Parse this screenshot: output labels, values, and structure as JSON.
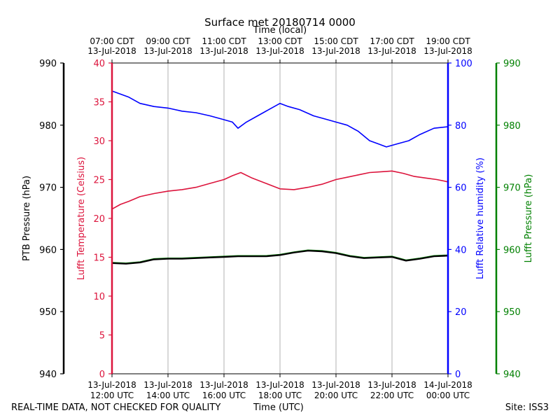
{
  "chart_data": {
    "type": "line",
    "title": "Surface met 20180714 0000",
    "top_axis_label": "Time (local)",
    "xlabel": "Time (UTC)",
    "x_range": [
      12,
      24
    ],
    "x_ticks_utc": [
      {
        "x": 12,
        "date": "13-Jul-2018",
        "time": "12:00 UTC"
      },
      {
        "x": 14,
        "date": "13-Jul-2018",
        "time": "14:00 UTC"
      },
      {
        "x": 16,
        "date": "13-Jul-2018",
        "time": "16:00 UTC"
      },
      {
        "x": 18,
        "date": "13-Jul-2018",
        "time": "18:00 UTC"
      },
      {
        "x": 20,
        "date": "13-Jul-2018",
        "time": "20:00 UTC"
      },
      {
        "x": 22,
        "date": "13-Jul-2018",
        "time": "22:00 UTC"
      },
      {
        "x": 24,
        "date": "14-Jul-2018",
        "time": "00:00 UTC"
      }
    ],
    "x_ticks_local": [
      {
        "x": 12,
        "time": "07:00 CDT",
        "date": "13-Jul-2018"
      },
      {
        "x": 14,
        "time": "09:00 CDT",
        "date": "13-Jul-2018"
      },
      {
        "x": 16,
        "time": "11:00 CDT",
        "date": "13-Jul-2018"
      },
      {
        "x": 18,
        "time": "13:00 CDT",
        "date": "13-Jul-2018"
      },
      {
        "x": 20,
        "time": "15:00 CDT",
        "date": "13-Jul-2018"
      },
      {
        "x": 22,
        "time": "17:00 CDT",
        "date": "13-Jul-2018"
      },
      {
        "x": 24,
        "time": "19:00 CDT",
        "date": "13-Jul-2018"
      }
    ],
    "axes": {
      "ptb": {
        "label": "PTB Pressure (hPa)",
        "color": "#000000",
        "range": [
          940,
          990
        ],
        "ticks": [
          "940",
          "950",
          "960",
          "970",
          "980",
          "990"
        ]
      },
      "temp": {
        "label": "Lufft Temperature (Celsius)",
        "color": "#dc143c",
        "range": [
          0,
          40
        ],
        "ticks": [
          "0",
          "5",
          "10",
          "15",
          "20",
          "25",
          "30",
          "35",
          "40"
        ]
      },
      "rh": {
        "label": "Lufft Relative humidity (%)",
        "color": "#0000ff",
        "range": [
          0,
          100
        ],
        "ticks": [
          "0",
          "20",
          "40",
          "60",
          "80",
          "100"
        ]
      },
      "lufft_p": {
        "label": "Lufft Pressure (hPa)",
        "color": "#008000",
        "range": [
          940,
          990
        ],
        "ticks": [
          "940",
          "950",
          "960",
          "970",
          "980",
          "990"
        ]
      }
    },
    "series": [
      {
        "name": "Lufft Relative humidity",
        "axis": "rh",
        "color": "#0000ff",
        "x": [
          12.0,
          12.3,
          12.6,
          13.0,
          13.5,
          14.0,
          14.5,
          15.0,
          15.5,
          15.9,
          16.3,
          16.5,
          16.8,
          17.2,
          17.6,
          18.0,
          18.3,
          18.7,
          19.2,
          19.6,
          20.0,
          20.4,
          20.8,
          21.2,
          21.5,
          21.8,
          22.2,
          22.6,
          23.0,
          23.5,
          24.0
        ],
        "y": [
          91,
          90,
          89,
          87,
          86,
          85.5,
          84.5,
          84,
          83,
          82,
          81,
          79,
          81,
          83,
          85,
          87,
          86,
          85,
          83,
          82,
          81,
          80,
          78,
          75,
          74,
          73,
          74,
          75,
          77,
          79,
          79.5
        ]
      },
      {
        "name": "Lufft Temperature",
        "axis": "temp",
        "color": "#dc143c",
        "x": [
          12.0,
          12.3,
          12.6,
          13.0,
          13.5,
          14.0,
          14.5,
          15.0,
          15.5,
          16.0,
          16.3,
          16.6,
          17.0,
          17.5,
          18.0,
          18.5,
          19.0,
          19.5,
          20.0,
          20.4,
          20.8,
          21.2,
          21.6,
          22.0,
          22.4,
          22.8,
          23.2,
          23.6,
          24.0
        ],
        "y": [
          21.2,
          21.8,
          22.2,
          22.8,
          23.2,
          23.5,
          23.7,
          24.0,
          24.5,
          25.0,
          25.5,
          25.9,
          25.2,
          24.5,
          23.8,
          23.7,
          24.0,
          24.4,
          25.0,
          25.3,
          25.6,
          25.9,
          26.0,
          26.1,
          25.8,
          25.4,
          25.2,
          25.0,
          24.7
        ]
      },
      {
        "name": "Lufft Pressure",
        "axis": "lufft_p",
        "color": "#008000",
        "x": [
          12.0,
          12.5,
          13.0,
          13.5,
          14.0,
          14.5,
          15.0,
          15.5,
          16.0,
          16.5,
          17.0,
          17.5,
          18.0,
          18.5,
          19.0,
          19.5,
          20.0,
          20.5,
          21.0,
          21.5,
          22.0,
          22.5,
          23.0,
          23.5,
          24.0
        ],
        "y": [
          957.9,
          957.8,
          958.0,
          958.5,
          958.6,
          958.6,
          958.7,
          958.8,
          958.9,
          959.0,
          959.0,
          959.0,
          959.2,
          959.6,
          959.9,
          959.8,
          959.5,
          959.0,
          958.7,
          958.8,
          958.9,
          958.3,
          958.6,
          959.0,
          959.1
        ]
      },
      {
        "name": "PTB Pressure",
        "axis": "ptb",
        "color": "#000000",
        "x": [
          12.0,
          12.5,
          13.0,
          13.5,
          14.0,
          14.5,
          15.0,
          15.5,
          16.0,
          16.5,
          17.0,
          17.5,
          18.0,
          18.5,
          19.0,
          19.5,
          20.0,
          20.5,
          21.0,
          21.5,
          22.0,
          22.5,
          23.0,
          23.5,
          24.0
        ],
        "y": [
          957.8,
          957.7,
          957.9,
          958.4,
          958.5,
          958.5,
          958.6,
          958.7,
          958.8,
          958.9,
          958.9,
          958.9,
          959.1,
          959.5,
          959.8,
          959.7,
          959.4,
          958.9,
          958.6,
          958.7,
          958.8,
          958.2,
          958.5,
          958.9,
          959.0
        ]
      }
    ],
    "grid": "vertical"
  },
  "footer": {
    "left_note": "REAL-TIME DATA, NOT CHECKED FOR QUALITY",
    "x_axis_title": "Time (UTC)",
    "site": "Site: ISS3"
  }
}
